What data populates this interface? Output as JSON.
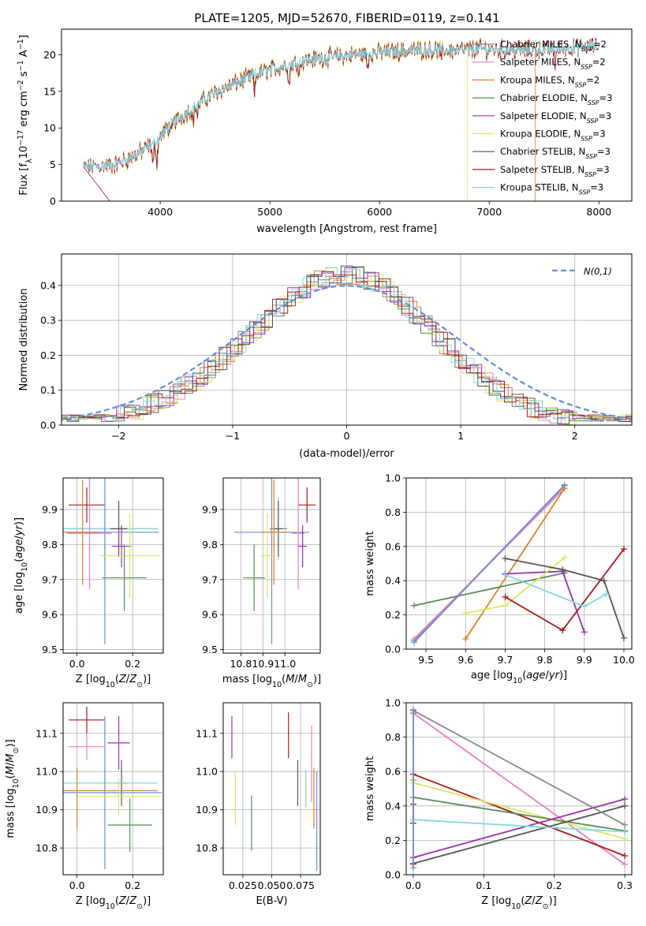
{
  "colors": {
    "chabrier_miles": "#8a8a8a",
    "salpeter_miles": "#e87fc2",
    "kroupa_miles": "#e08020",
    "chabrier_elodie": "#5a8a5a",
    "salpeter_elodie": "#9a30b0",
    "kroupa_elodie": "#d8e860",
    "chabrier_stelib": "#555555",
    "salpeter_stelib": "#aa1a1a",
    "kroupa_stelib": "#80d8e0",
    "normal": "#6090d8",
    "blue_fit": "#6f8fdc"
  },
  "chart_data": [
    {
      "id": "spectrum",
      "type": "line",
      "title": "PLATE=1205, MJD=52670, FIBERID=0119, z=0.141",
      "xlabel": "wavelength [Angstrom, rest frame]",
      "ylabel": "Flux [f_λ10^-17 erg cm^-2 s^-1 A^-1]",
      "xlim": [
        3100,
        8300
      ],
      "ylim": [
        0,
        23.5
      ],
      "xticks": [
        4000,
        5000,
        6000,
        7000,
        8000
      ],
      "yticks": [
        0,
        5,
        10,
        15,
        20
      ],
      "continuum": {
        "x": [
          3300,
          3450,
          3600,
          3800,
          3950,
          4100,
          4300,
          4500,
          4700,
          4900,
          5100,
          5300,
          5500,
          5700,
          5900,
          6100,
          6300,
          6500,
          6700,
          6900,
          7100,
          7300,
          7500,
          7700,
          7900,
          8100
        ],
        "y": [
          4.6,
          4.8,
          5.0,
          6.5,
          8.0,
          10.5,
          12.8,
          14.8,
          16.2,
          17.5,
          18.4,
          19.2,
          19.6,
          19.9,
          20.2,
          20.4,
          20.6,
          20.7,
          20.6,
          20.8,
          20.7,
          20.6,
          20.7,
          20.9,
          21.1,
          21.3
        ]
      },
      "legend": {
        "position": "upper right",
        "entries": [
          {
            "name": "Chabrier MILES, N_SSP=2",
            "color_key": "chabrier_miles"
          },
          {
            "name": "Salpeter MILES, N_SSP=2",
            "color_key": "salpeter_miles"
          },
          {
            "name": "Kroupa MILES, N_SSP=2",
            "color_key": "kroupa_miles"
          },
          {
            "name": "Chabrier ELODIE, N_SSP=3",
            "color_key": "chabrier_elodie"
          },
          {
            "name": "Salpeter ELODIE, N_SSP=3",
            "color_key": "salpeter_elodie"
          },
          {
            "name": "Kroupa ELODIE, N_SSP=3",
            "color_key": "kroupa_elodie"
          },
          {
            "name": "Chabrier STELIB, N_SSP=3",
            "color_key": "chabrier_stelib"
          },
          {
            "name": "Salpeter STELIB, N_SSP=3",
            "color_key": "salpeter_stelib"
          },
          {
            "name": "Kroupa STELIB, N_SSP=3",
            "color_key": "kroupa_stelib"
          }
        ]
      }
    },
    {
      "id": "residuals",
      "type": "histogram",
      "xlabel": "(data-model)/error",
      "ylabel": "Normed distribution",
      "xlim": [
        -2.5,
        2.5
      ],
      "ylim": [
        0,
        0.49
      ],
      "xticks": [
        -2,
        -1,
        0,
        1,
        2
      ],
      "yticks": [
        0.0,
        0.1,
        0.2,
        0.3,
        0.4
      ],
      "bin_width": 0.1,
      "legend": {
        "position": "upper right",
        "entries": [
          {
            "name": "N(0,1)",
            "color_key": "normal",
            "style": "dashed"
          }
        ]
      }
    },
    {
      "id": "age_vs_Z",
      "type": "errorbar",
      "xlabel": "Z [log10(Z/Z⊙)]",
      "ylabel": "age  [log10(age/yr)]",
      "xlim": [
        -0.05,
        0.31
      ],
      "ylim": [
        9.49,
        9.99
      ],
      "xticks": [
        0.0,
        0.2
      ],
      "yticks": [
        9.5,
        9.6,
        9.7,
        9.8,
        9.9
      ],
      "points": [
        {
          "x": 0.035,
          "y": 9.913,
          "xerr": 0.065,
          "yerr": 0.05,
          "color_key": "salpeter_stelib"
        },
        {
          "x": 0.1,
          "y": 9.845,
          "xerr": 0.19,
          "yerr": 0.02,
          "color_key": "chabrier_miles"
        },
        {
          "x": 0.1,
          "y": 9.845,
          "xerr": 0.19,
          "yerr": 0.09,
          "color_key": "kroupa_stelib"
        },
        {
          "x": 0.15,
          "y": 9.845,
          "xerr": 0.03,
          "yerr": 0.08,
          "color_key": "chabrier_stelib"
        },
        {
          "x": 0.1,
          "y": 9.835,
          "xerr": 0.195,
          "yerr": 0.32,
          "color_key": "blue_fit"
        },
        {
          "x": 0.02,
          "y": 9.835,
          "xerr": 0.06,
          "yerr": 0.15,
          "color_key": "kroupa_miles"
        },
        {
          "x": 0.045,
          "y": 9.832,
          "xerr": 0.08,
          "yerr": 0.16,
          "color_key": "salpeter_miles"
        },
        {
          "x": 0.16,
          "y": 9.795,
          "xerr": 0.035,
          "yerr": 0.06,
          "color_key": "salpeter_elodie"
        },
        {
          "x": 0.19,
          "y": 9.768,
          "xerr": 0.11,
          "yerr": 0.12,
          "color_key": "kroupa_elodie"
        },
        {
          "x": 0.17,
          "y": 9.705,
          "xerr": 0.08,
          "yerr": 0.095,
          "color_key": "chabrier_elodie"
        }
      ]
    },
    {
      "id": "age_vs_mass",
      "type": "errorbar",
      "xlabel": "mass [log10(M/M⊙)]",
      "xlim": [
        10.72,
        11.16
      ],
      "ylim": [
        9.49,
        9.99
      ],
      "xticks": [
        10.8,
        10.9,
        11.0
      ],
      "yticks": [
        9.5,
        9.6,
        9.7,
        9.8,
        9.9
      ],
      "points": [
        {
          "x": 11.1,
          "y": 9.913,
          "xerr": 0.04,
          "yerr": 0.05,
          "color_key": "salpeter_stelib"
        },
        {
          "x": 10.97,
          "y": 9.845,
          "xerr": 0.04,
          "yerr": 0.02,
          "color_key": "chabrier_miles"
        },
        {
          "x": 10.97,
          "y": 9.845,
          "xerr": 0.015,
          "yerr": 0.09,
          "color_key": "kroupa_stelib"
        },
        {
          "x": 10.97,
          "y": 9.845,
          "xerr": 0.02,
          "yerr": 0.08,
          "color_key": "chabrier_stelib"
        },
        {
          "x": 10.94,
          "y": 9.835,
          "xerr": 0.17,
          "yerr": 0.32,
          "color_key": "blue_fit"
        },
        {
          "x": 10.95,
          "y": 9.835,
          "xerr": 0.06,
          "yerr": 0.15,
          "color_key": "kroupa_miles"
        },
        {
          "x": 11.06,
          "y": 9.832,
          "xerr": 0.03,
          "yerr": 0.16,
          "color_key": "salpeter_miles"
        },
        {
          "x": 11.08,
          "y": 9.795,
          "xerr": 0.02,
          "yerr": 0.06,
          "color_key": "salpeter_elodie"
        },
        {
          "x": 10.92,
          "y": 9.768,
          "xerr": 0.03,
          "yerr": 0.12,
          "color_key": "kroupa_elodie"
        },
        {
          "x": 10.86,
          "y": 9.705,
          "xerr": 0.05,
          "yerr": 0.095,
          "color_key": "chabrier_elodie"
        }
      ]
    },
    {
      "id": "massweight_vs_age",
      "type": "line",
      "xlabel": "age  [log10(age/yr)]",
      "ylabel": "mass weight",
      "xlim": [
        9.45,
        10.02
      ],
      "ylim": [
        0,
        1.0
      ],
      "xticks": [
        9.5,
        9.6,
        9.7,
        9.8,
        9.9,
        10.0
      ],
      "yticks": [
        0.0,
        0.2,
        0.4,
        0.6,
        0.8,
        1.0
      ],
      "series": [
        {
          "color_key": "chabrier_miles",
          "x": [
            9.47,
            9.85
          ],
          "y": [
            0.05,
            0.955
          ]
        },
        {
          "color_key": "salpeter_miles",
          "x": [
            9.47,
            9.85
          ],
          "y": [
            0.06,
            0.94
          ]
        },
        {
          "color_key": "kroupa_miles",
          "x": [
            9.6,
            9.85
          ],
          "y": [
            0.06,
            0.94
          ]
        },
        {
          "color_key": "chabrier_elodie",
          "x": [
            9.47,
            9.85
          ],
          "y": [
            0.255,
            0.445
          ]
        },
        {
          "color_key": "salpeter_elodie",
          "x": [
            9.7,
            9.845,
            9.9
          ],
          "y": [
            0.44,
            0.455,
            0.1
          ]
        },
        {
          "color_key": "kroupa_elodie",
          "x": [
            9.6,
            9.7,
            9.85
          ],
          "y": [
            0.21,
            0.255,
            0.535
          ]
        },
        {
          "color_key": "chabrier_stelib",
          "x": [
            9.7,
            9.845,
            9.95,
            10.0
          ],
          "y": [
            0.53,
            0.465,
            0.4,
            0.065
          ]
        },
        {
          "color_key": "salpeter_stelib",
          "x": [
            9.7,
            9.845,
            10.0
          ],
          "y": [
            0.305,
            0.11,
            0.585
          ]
        },
        {
          "color_key": "kroupa_stelib",
          "x": [
            9.7,
            9.9,
            9.955
          ],
          "y": [
            0.435,
            0.25,
            0.32
          ]
        },
        {
          "color_key": "blue_fit",
          "x": [
            9.47,
            9.85
          ],
          "y": [
            0.04,
            0.96
          ]
        }
      ]
    },
    {
      "id": "mass_vs_Z",
      "type": "errorbar",
      "xlabel": "Z [log10(Z/Z⊙)]",
      "ylabel": "mass [log10(M/M⊙)]",
      "xlim": [
        -0.05,
        0.31
      ],
      "ylim": [
        10.73,
        11.18
      ],
      "xticks": [
        0.0,
        0.2
      ],
      "yticks": [
        10.8,
        10.9,
        11.0,
        11.1
      ],
      "points": [
        {
          "x": 0.035,
          "y": 11.135,
          "xerr": 0.065,
          "yerr": 0.035,
          "color_key": "salpeter_stelib"
        },
        {
          "x": 0.15,
          "y": 11.075,
          "xerr": 0.04,
          "yerr": 0.07,
          "color_key": "salpeter_elodie"
        },
        {
          "x": 0.035,
          "y": 11.065,
          "xerr": 0.065,
          "yerr": 0.035,
          "color_key": "salpeter_miles"
        },
        {
          "x": 0.16,
          "y": 10.97,
          "xerr": 0.02,
          "yerr": 0.06,
          "color_key": "chabrier_stelib"
        },
        {
          "x": 0.1,
          "y": 10.97,
          "xerr": 0.19,
          "yerr": 0.03,
          "color_key": "kroupa_stelib"
        },
        {
          "x": 0.1,
          "y": 10.95,
          "xerr": 0.19,
          "yerr": 0.01,
          "color_key": "kroupa_miles"
        },
        {
          "x": 0.1,
          "y": 10.945,
          "xerr": 0.205,
          "yerr": 0.2,
          "color_key": "blue_fit"
        },
        {
          "x": 0.15,
          "y": 10.935,
          "xerr": 0.15,
          "yerr": 0.05,
          "color_key": "kroupa_elodie"
        },
        {
          "x": 0.0,
          "y": 10.93,
          "xerr": 0.0,
          "yerr": 0.08,
          "color_key": "kroupa_miles"
        },
        {
          "x": 0.19,
          "y": 10.86,
          "xerr": 0.08,
          "yerr": 0.07,
          "color_key": "chabrier_elodie"
        }
      ]
    },
    {
      "id": "mass_vs_EBV",
      "type": "errorbar",
      "xlabel": "E(B-V)",
      "xlim": [
        0.008,
        0.092
      ],
      "ylim": [
        10.73,
        11.18
      ],
      "xticks": [
        0.025,
        0.05,
        0.075
      ],
      "xticklabels": [
        "0.025",
        "0.050",
        "0.075"
      ],
      "yticks": [
        10.8,
        10.9,
        11.0,
        11.1
      ],
      "points": [
        {
          "x": 0.0155,
          "y": 11.09,
          "yerr": 0.055,
          "color_key": "salpeter_elodie"
        },
        {
          "x": 0.0185,
          "y": 10.93,
          "yerr": 0.07,
          "color_key": "kroupa_elodie"
        },
        {
          "x": 0.0325,
          "y": 10.865,
          "yerr": 0.072,
          "color_key": "chabrier_elodie"
        },
        {
          "x": 0.0645,
          "y": 11.095,
          "yerr": 0.06,
          "color_key": "salpeter_stelib"
        },
        {
          "x": 0.0725,
          "y": 10.97,
          "yerr": 0.06,
          "color_key": "chabrier_stelib"
        },
        {
          "x": 0.0795,
          "y": 10.955,
          "yerr": 0.05,
          "color_key": "kroupa_stelib"
        },
        {
          "x": 0.0845,
          "y": 11.02,
          "yerr": 0.1,
          "color_key": "salpeter_miles"
        },
        {
          "x": 0.0865,
          "y": 10.93,
          "yerr": 0.08,
          "color_key": "kroupa_miles"
        },
        {
          "x": 0.089,
          "y": 10.87,
          "yerr": 0.13,
          "color_key": "blue_fit"
        }
      ]
    },
    {
      "id": "massweight_vs_Z",
      "type": "line",
      "xlabel": "Z [log10(Z/Z⊙)]",
      "ylabel": "mass weight",
      "xlim": [
        -0.01,
        0.31
      ],
      "ylim": [
        0,
        1.0
      ],
      "xticks": [
        0.0,
        0.1,
        0.2,
        0.3
      ],
      "yticks": [
        0.0,
        0.2,
        0.4,
        0.6,
        0.8,
        1.0
      ],
      "series": [
        {
          "color_key": "salpeter_miles",
          "x": [
            0.0,
            0.3
          ],
          "y": [
            0.94,
            0.06
          ]
        },
        {
          "color_key": "kroupa_miles",
          "x": [
            0.0,
            0.0,
            0.0
          ],
          "y": [
            0.94,
            0.55,
            0.06
          ]
        },
        {
          "color_key": "salpeter_stelib",
          "x": [
            0.0,
            0.0,
            0.0,
            0.3
          ],
          "y": [
            0.3,
            0.41,
            0.585,
            0.11
          ]
        },
        {
          "color_key": "kroupa_elodie",
          "x": [
            0.0,
            0.3
          ],
          "y": [
            0.535,
            0.21
          ]
        },
        {
          "color_key": "chabrier_elodie",
          "x": [
            0.0,
            0.3
          ],
          "y": [
            0.45,
            0.255
          ]
        },
        {
          "color_key": "chabrier_stelib",
          "x": [
            0.0,
            0.3
          ],
          "y": [
            0.065,
            0.4
          ]
        },
        {
          "color_key": "salpeter_elodie",
          "x": [
            0.0,
            0.3
          ],
          "y": [
            0.1,
            0.44
          ]
        },
        {
          "color_key": "kroupa_stelib",
          "x": [
            0.0,
            0.3
          ],
          "y": [
            0.32,
            0.25
          ]
        },
        {
          "color_key": "chabrier_miles",
          "x": [
            0.0,
            0.3
          ],
          "y": [
            0.955,
            0.29
          ]
        },
        {
          "color_key": "blue_fit",
          "x": [
            0.0,
            0.0
          ],
          "y": [
            0.04,
            0.96
          ]
        }
      ]
    }
  ]
}
